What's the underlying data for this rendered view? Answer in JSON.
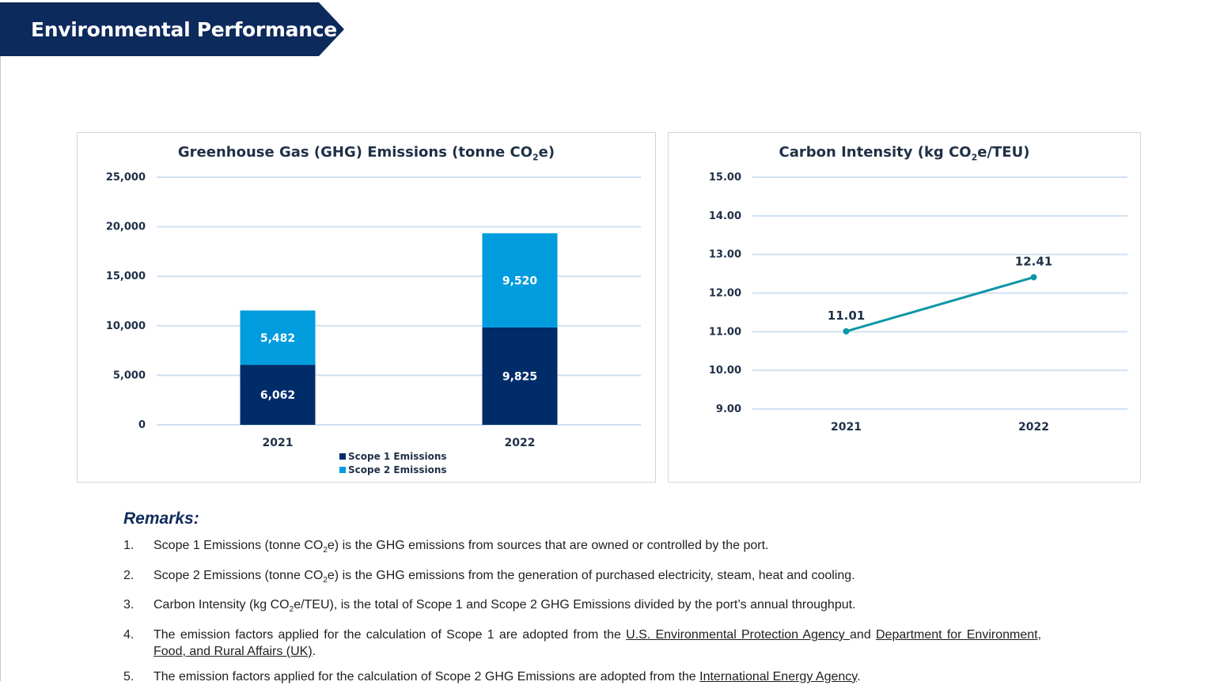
{
  "banner": {
    "title": "Environmental Performance",
    "color": "#0d2a5c"
  },
  "chart_data": [
    {
      "type": "bar",
      "stacked": true,
      "title_main": "Greenhouse Gas (GHG) Emissions (tonne CO",
      "title_sub": "2",
      "title_end": "e)",
      "categories": [
        "2021",
        "2022"
      ],
      "series": [
        {
          "name": "Scope 1 Emissions",
          "values": [
            6062,
            9825
          ],
          "labels": [
            "6,062",
            "9,825"
          ],
          "color": "#002d6a"
        },
        {
          "name": "Scope 2 Emissions",
          "values": [
            5482,
            9520
          ],
          "labels": [
            "5,482",
            "9,520"
          ],
          "color": "#009cde"
        }
      ],
      "ylim": [
        0,
        25000
      ],
      "yticks": [
        0,
        5000,
        10000,
        15000,
        20000,
        25000
      ],
      "ytick_labels": [
        "0",
        "5,000",
        "10,000",
        "15,000",
        "20,000",
        "25,000"
      ],
      "grid": true,
      "legend": "bottom"
    },
    {
      "type": "line",
      "title_main": "Carbon Intensity (kg CO",
      "title_sub": "2",
      "title_end": "e/TEU)",
      "categories": [
        "2021",
        "2022"
      ],
      "values": [
        11.01,
        12.41
      ],
      "labels": [
        "11.01",
        "12.41"
      ],
      "color": "#0c96a6",
      "ylim": [
        9,
        15
      ],
      "yticks": [
        9,
        10,
        11,
        12,
        13,
        14,
        15
      ],
      "ytick_labels": [
        "9.00",
        "10.00",
        "11.00",
        "12.00",
        "13.00",
        "14.00",
        "15.00"
      ],
      "grid": true
    }
  ],
  "remarks": {
    "title": "Remarks:",
    "items": [
      {
        "num": "1.",
        "pre": "Scope 1 Emissions (tonne CO",
        "sub": "2",
        "post": "e) is the GHG emissions from sources that are owned or controlled by the port."
      },
      {
        "num": "2.",
        "pre": "Scope 2 Emissions (tonne CO",
        "sub": "2",
        "post": "e) is the GHG emissions from the generation of purchased electricity, steam, heat and cooling."
      },
      {
        "num": "3.",
        "pre": "Carbon Intensity (kg CO",
        "sub": "2",
        "post": "e/TEU), is the total of Scope 1 and Scope 2 GHG Emissions divided by the port’s annual throughput."
      },
      {
        "num": "4.",
        "pre": "The emission factors applied for the calculation of Scope 1 are adopted from the ",
        "link1": "U.S. Environmental Protection Agency ",
        "mid": "and ",
        "link2": "Department for Environment, Food, and Rural Affairs (UK)",
        "post": "."
      },
      {
        "num": "5.",
        "pre": "The emission factors applied for the calculation of Scope 2 GHG Emissions are adopted from the ",
        "link1": "International Energy Agency",
        "post": "."
      }
    ]
  }
}
